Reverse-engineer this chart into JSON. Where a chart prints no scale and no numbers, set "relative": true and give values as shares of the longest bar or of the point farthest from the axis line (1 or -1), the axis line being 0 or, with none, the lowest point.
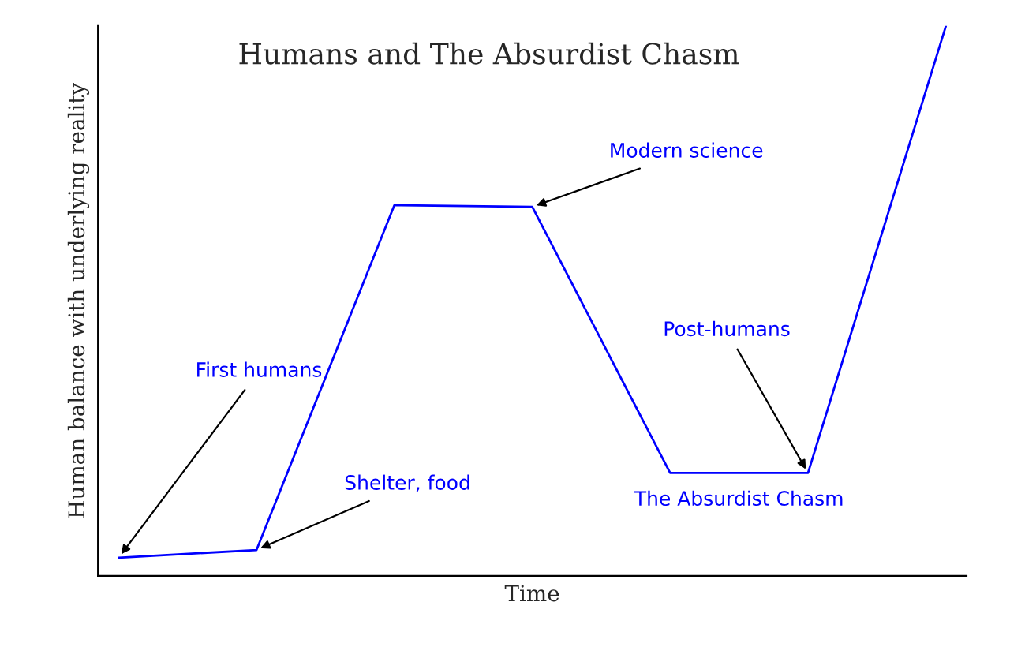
{
  "chart_data": {
    "type": "line",
    "relative": true,
    "title": "Humans and The Absurdist Chasm",
    "xlabel": "Time",
    "ylabel": "Human balance with underlying reality",
    "categories": [
      null,
      null,
      null,
      null,
      null,
      null,
      null
    ],
    "series": [
      {
        "color": "#0000ff",
        "values": [
          0.033,
          0.047,
          0.674,
          0.671,
          0.187,
          0.187,
          1.0
        ]
      }
    ],
    "annotations": [
      "First humans",
      "Shelter, food",
      "Modern science",
      "Post-humans",
      "The Absurdist Chasm"
    ],
    "tick_labels": false,
    "grid": false,
    "marker": "none",
    "line_style": "solid"
  }
}
